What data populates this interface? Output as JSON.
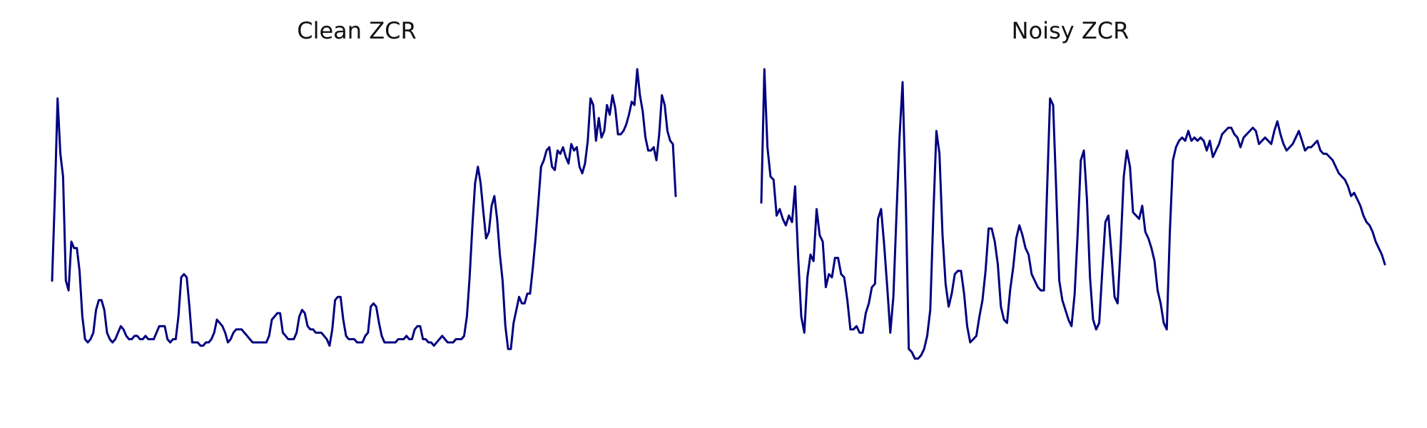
{
  "chart_data": [
    {
      "type": "line",
      "title": "Clean ZCR",
      "xlabel": "",
      "ylabel": "",
      "grid": false,
      "axes": "off",
      "ylim": [
        0,
        1
      ],
      "series": [
        {
          "color": "#000080",
          "values": [
            0.35,
            0.61,
            0.91,
            0.74,
            0.67,
            0.35,
            0.32,
            0.47,
            0.45,
            0.45,
            0.38,
            0.24,
            0.17,
            0.16,
            0.17,
            0.19,
            0.26,
            0.29,
            0.29,
            0.26,
            0.19,
            0.17,
            0.16,
            0.17,
            0.19,
            0.21,
            0.2,
            0.18,
            0.17,
            0.17,
            0.18,
            0.18,
            0.17,
            0.17,
            0.18,
            0.17,
            0.17,
            0.17,
            0.19,
            0.21,
            0.21,
            0.21,
            0.17,
            0.16,
            0.17,
            0.17,
            0.24,
            0.36,
            0.37,
            0.36,
            0.27,
            0.16,
            0.16,
            0.16,
            0.15,
            0.15,
            0.16,
            0.16,
            0.17,
            0.19,
            0.23,
            0.22,
            0.21,
            0.19,
            0.16,
            0.17,
            0.19,
            0.2,
            0.2,
            0.2,
            0.19,
            0.18,
            0.17,
            0.16,
            0.16,
            0.16,
            0.16,
            0.16,
            0.16,
            0.18,
            0.23,
            0.24,
            0.25,
            0.25,
            0.19,
            0.18,
            0.17,
            0.17,
            0.17,
            0.19,
            0.24,
            0.26,
            0.25,
            0.21,
            0.2,
            0.2,
            0.19,
            0.19,
            0.19,
            0.18,
            0.17,
            0.15,
            0.2,
            0.29,
            0.3,
            0.3,
            0.23,
            0.18,
            0.17,
            0.17,
            0.17,
            0.16,
            0.16,
            0.16,
            0.18,
            0.19,
            0.27,
            0.28,
            0.27,
            0.22,
            0.18,
            0.16,
            0.16,
            0.16,
            0.16,
            0.16,
            0.17,
            0.17,
            0.17,
            0.18,
            0.17,
            0.17,
            0.2,
            0.21,
            0.21,
            0.17,
            0.17,
            0.16,
            0.16,
            0.15,
            0.16,
            0.17,
            0.18,
            0.17,
            0.16,
            0.16,
            0.16,
            0.17,
            0.17,
            0.17,
            0.18,
            0.24,
            0.36,
            0.52,
            0.65,
            0.7,
            0.65,
            0.56,
            0.48,
            0.5,
            0.58,
            0.61,
            0.54,
            0.43,
            0.35,
            0.21,
            0.14,
            0.14,
            0.22,
            0.26,
            0.3,
            0.28,
            0.28,
            0.31,
            0.31,
            0.39,
            0.48,
            0.59,
            0.7,
            0.72,
            0.75,
            0.76,
            0.7,
            0.69,
            0.75,
            0.74,
            0.76,
            0.73,
            0.71,
            0.77,
            0.75,
            0.76,
            0.7,
            0.68,
            0.71,
            0.78,
            0.91,
            0.89,
            0.78,
            0.85,
            0.79,
            0.81,
            0.89,
            0.86,
            0.92,
            0.88,
            0.8,
            0.8,
            0.81,
            0.83,
            0.86,
            0.9,
            0.89,
            1.0,
            0.92,
            0.87,
            0.79,
            0.75,
            0.75,
            0.76,
            0.72,
            0.8,
            0.92,
            0.89,
            0.81,
            0.78,
            0.77,
            0.61
          ]
        }
      ]
    },
    {
      "type": "line",
      "title": "Noisy ZCR",
      "xlabel": "",
      "ylabel": "",
      "grid": false,
      "axes": "off",
      "ylim": [
        0,
        1
      ],
      "series": [
        {
          "color": "#000080",
          "values": [
            0.59,
            1.0,
            0.76,
            0.67,
            0.66,
            0.55,
            0.57,
            0.54,
            0.52,
            0.55,
            0.53,
            0.64,
            0.42,
            0.24,
            0.19,
            0.36,
            0.43,
            0.41,
            0.57,
            0.49,
            0.47,
            0.33,
            0.37,
            0.36,
            0.42,
            0.42,
            0.37,
            0.36,
            0.29,
            0.2,
            0.2,
            0.21,
            0.19,
            0.19,
            0.25,
            0.28,
            0.33,
            0.34,
            0.54,
            0.57,
            0.46,
            0.33,
            0.19,
            0.3,
            0.55,
            0.79,
            0.96,
            0.61,
            0.14,
            0.13,
            0.11,
            0.11,
            0.12,
            0.14,
            0.18,
            0.26,
            0.55,
            0.81,
            0.74,
            0.49,
            0.34,
            0.27,
            0.31,
            0.37,
            0.38,
            0.38,
            0.31,
            0.21,
            0.16,
            0.17,
            0.18,
            0.24,
            0.29,
            0.38,
            0.51,
            0.51,
            0.47,
            0.4,
            0.27,
            0.23,
            0.22,
            0.32,
            0.39,
            0.48,
            0.52,
            0.49,
            0.45,
            0.43,
            0.37,
            0.35,
            0.33,
            0.32,
            0.32,
            0.62,
            0.91,
            0.89,
            0.63,
            0.35,
            0.29,
            0.26,
            0.23,
            0.21,
            0.31,
            0.5,
            0.72,
            0.75,
            0.6,
            0.36,
            0.23,
            0.2,
            0.22,
            0.38,
            0.53,
            0.55,
            0.43,
            0.3,
            0.28,
            0.46,
            0.67,
            0.75,
            0.7,
            0.56,
            0.55,
            0.54,
            0.58,
            0.5,
            0.48,
            0.45,
            0.41,
            0.32,
            0.28,
            0.22,
            0.2,
            0.5,
            0.72,
            0.76,
            0.78,
            0.79,
            0.78,
            0.81,
            0.78,
            0.79,
            0.78,
            0.79,
            0.78,
            0.75,
            0.78,
            0.73,
            0.75,
            0.77,
            0.8,
            0.81,
            0.82,
            0.82,
            0.8,
            0.79,
            0.76,
            0.79,
            0.8,
            0.81,
            0.82,
            0.81,
            0.77,
            0.78,
            0.79,
            0.78,
            0.77,
            0.81,
            0.84,
            0.8,
            0.77,
            0.75,
            0.76,
            0.77,
            0.79,
            0.81,
            0.78,
            0.75,
            0.76,
            0.76,
            0.77,
            0.78,
            0.75,
            0.74,
            0.74,
            0.73,
            0.72,
            0.7,
            0.68,
            0.67,
            0.66,
            0.64,
            0.61,
            0.62,
            0.6,
            0.58,
            0.55,
            0.53,
            0.52,
            0.5,
            0.47,
            0.45,
            0.43,
            0.4
          ]
        }
      ]
    }
  ]
}
